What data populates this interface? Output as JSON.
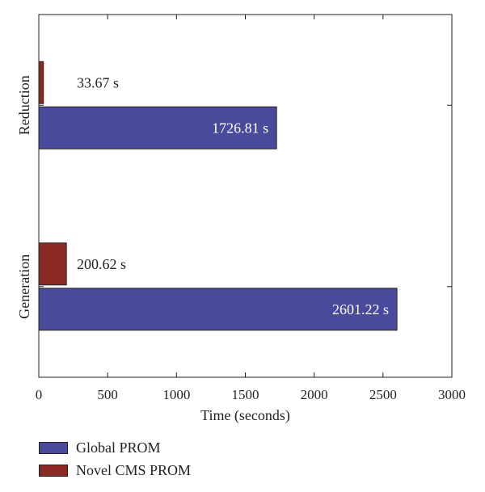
{
  "chart_data": {
    "type": "bar",
    "orientation": "horizontal",
    "categories": [
      "Reduction",
      "Generation"
    ],
    "series": [
      {
        "name": "Global PROM",
        "values": [
          1726.81,
          2601.22
        ],
        "labels": [
          "1726.81 s",
          "2601.22 s"
        ],
        "color": "#4a4a9c"
      },
      {
        "name": "Novel CMS PROM",
        "values": [
          33.67,
          200.62
        ],
        "labels": [
          "33.67 s",
          "200.62 s"
        ],
        "color": "#8b2a22"
      }
    ],
    "xlabel": "Time (seconds)",
    "xlim": [
      0,
      3000
    ],
    "xticks": [
      "0",
      "500",
      "1000",
      "1500",
      "2000",
      "2500",
      "3000"
    ],
    "grid": false,
    "legend_position": "bottom-left"
  }
}
